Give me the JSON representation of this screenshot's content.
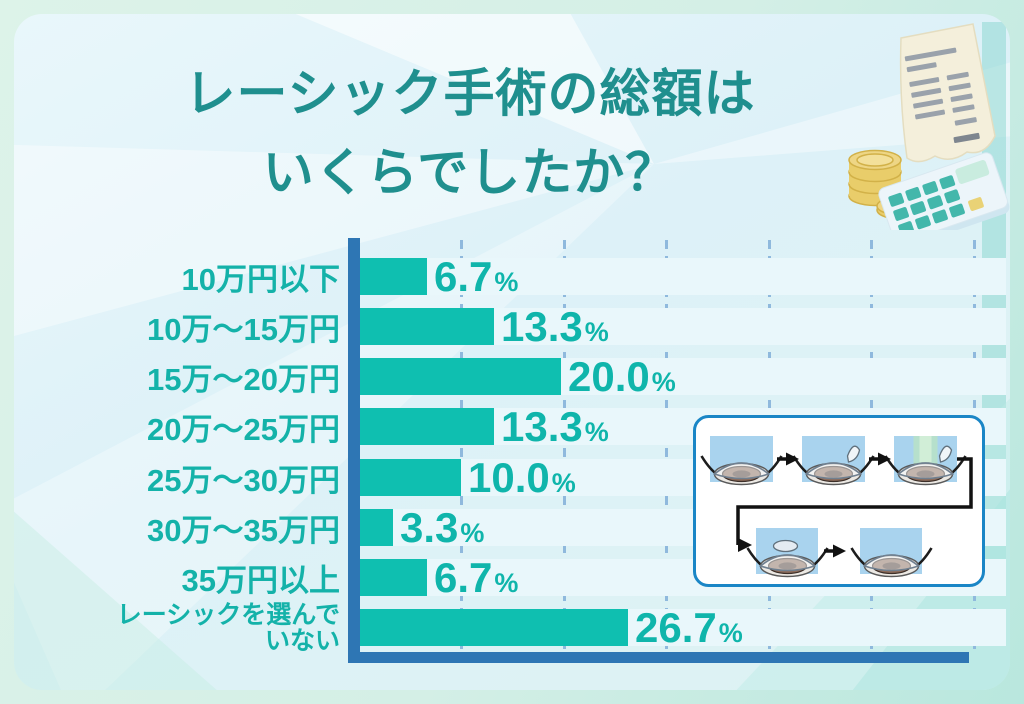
{
  "title": {
    "line1": "レーシック手術の総額は",
    "line2": "いくらでしたか？"
  },
  "chart_data": {
    "type": "bar",
    "orientation": "horizontal",
    "title": "レーシック手術の総額はいくらでしたか？",
    "unit": "%",
    "categories": [
      "10万円以下",
      "10万〜15万円",
      "15万〜20万円",
      "20万〜25万円",
      "25万〜30万円",
      "30万〜35万円",
      "35万円以上",
      "レーシックを選んでいない"
    ],
    "values": [
      6.7,
      13.3,
      20.0,
      13.3,
      10.0,
      3.3,
      6.7,
      26.7
    ],
    "value_labels": [
      "6.7",
      "13.3",
      "20.0",
      "13.3",
      "10.0",
      "3.3",
      "6.7",
      "26.7"
    ],
    "category_display": [
      "10万円以下",
      "10万〜15万円",
      "15万〜20万円",
      "20万〜25万円",
      "25万〜30万円",
      "30万〜35万円",
      "35万円以上",
      "レーシックを選んで\nいない"
    ],
    "xlim": [
      0,
      64
    ],
    "gridline_interval_pct": 10,
    "grid": "vertical-dashed",
    "legend": "none"
  },
  "colors": {
    "title_text": "#1f8f8e",
    "label_text": "#14b2a9",
    "value_text": "#0fb5ab",
    "bar": "#0fbfb0",
    "axis": "#2e76b4",
    "gridline": "#8fb9dd",
    "row_band": "#e9f7fb",
    "panel_bg": "#ddf1f8",
    "frame_bg": "#d4efe6",
    "diagram_border": "#1a86c6",
    "eye_panel_bg": "#a9d3ee",
    "coin_gold": "#e9cd6a",
    "receipt_paper": "#f4efdb"
  },
  "icons": {
    "money_illustration": "receipt-coins-calculator-illustration",
    "procedure_diagram": "lasik-procedure-steps-diagram"
  }
}
